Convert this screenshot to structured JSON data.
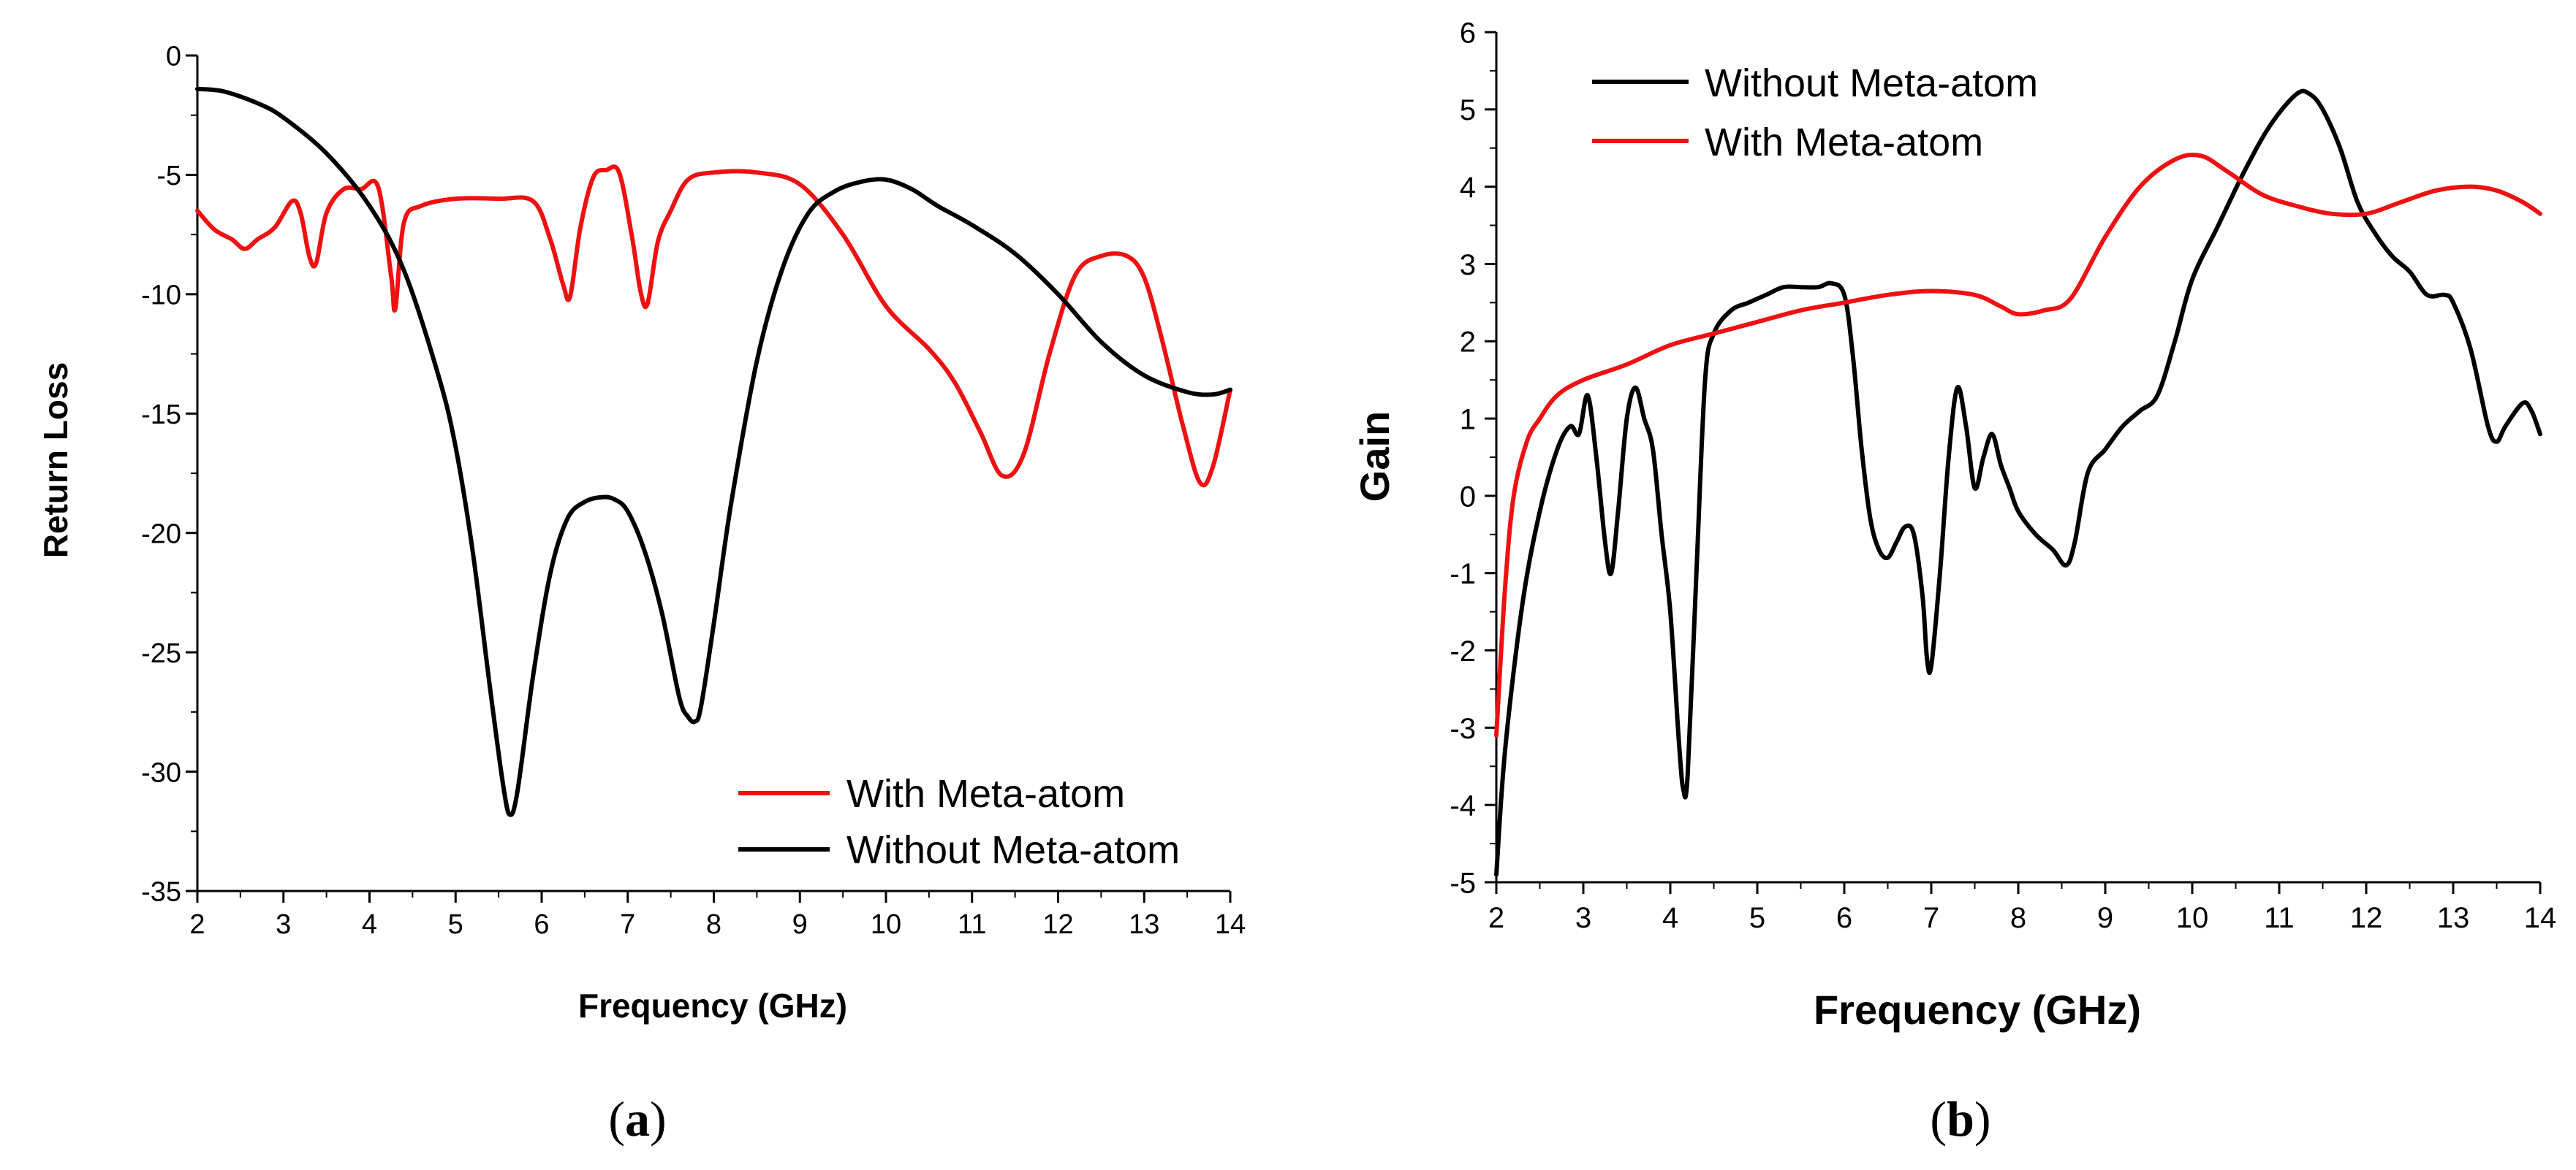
{
  "colors": {
    "red": "#ee1111",
    "black": "#000000"
  },
  "chart_data": [
    {
      "type": "line",
      "panel_label": "a",
      "title": "",
      "xlabel": "Frequency (GHz)",
      "ylabel": "Return Loss",
      "xlim": [
        2,
        14
      ],
      "ylim": [
        -35,
        0
      ],
      "xticks": [
        "2",
        "3",
        "4",
        "5",
        "6",
        "7",
        "8",
        "9",
        "10",
        "11",
        "12",
        "13",
        "14"
      ],
      "yticks": [
        "0",
        "-5",
        "-10",
        "-15",
        "-20",
        "-25",
        "-30",
        "-35"
      ],
      "legend": [
        "With Meta-atom",
        "Without Meta-atom"
      ],
      "legend_position": "bottom-right",
      "series": [
        {
          "name": "With Meta-atom",
          "color": "#ee1111",
          "x": [
            2.0,
            2.2,
            2.4,
            2.55,
            2.7,
            2.9,
            3.1,
            3.2,
            3.3,
            3.38,
            3.5,
            3.7,
            3.9,
            4.1,
            4.25,
            4.3,
            4.4,
            4.6,
            5.0,
            5.5,
            5.9,
            6.1,
            6.25,
            6.33,
            6.45,
            6.6,
            6.75,
            6.9,
            7.05,
            7.15,
            7.23,
            7.35,
            7.5,
            7.7,
            8.0,
            8.5,
            9.0,
            9.5,
            10.0,
            10.5,
            10.8,
            11.1,
            11.35,
            11.6,
            11.9,
            12.2,
            12.5,
            12.8,
            13.0,
            13.2,
            13.45,
            13.65,
            13.8,
            14.0
          ],
          "y": [
            -6.5,
            -7.3,
            -7.7,
            -8.1,
            -7.7,
            -7.2,
            -6.1,
            -6.6,
            -8.4,
            -8.7,
            -6.6,
            -5.6,
            -5.6,
            -5.5,
            -9.2,
            -10.6,
            -7.0,
            -6.3,
            -6.0,
            -6.0,
            -6.1,
            -7.7,
            -9.6,
            -10.1,
            -7.2,
            -5.1,
            -4.8,
            -4.9,
            -7.6,
            -9.9,
            -10.4,
            -7.8,
            -6.5,
            -5.2,
            -4.9,
            -4.9,
            -5.4,
            -7.5,
            -10.5,
            -12.3,
            -13.7,
            -15.8,
            -17.6,
            -16.7,
            -12.5,
            -9.2,
            -8.4,
            -8.4,
            -9.3,
            -11.8,
            -15.5,
            -17.9,
            -17.2,
            -14.0
          ]
        },
        {
          "name": "Without Meta-atom",
          "color": "#000000",
          "x": [
            2.0,
            2.3,
            2.7,
            3.0,
            3.5,
            4.0,
            4.4,
            4.8,
            5.0,
            5.2,
            5.4,
            5.55,
            5.63,
            5.72,
            5.9,
            6.1,
            6.3,
            6.5,
            6.7,
            6.85,
            7.0,
            7.2,
            7.4,
            7.6,
            7.7,
            7.78,
            7.85,
            8.0,
            8.2,
            8.5,
            8.8,
            9.1,
            9.4,
            9.7,
            10.0,
            10.3,
            10.6,
            11.0,
            11.5,
            12.0,
            12.5,
            13.0,
            13.5,
            13.8,
            14.0
          ],
          "y": [
            -1.4,
            -1.5,
            -2.0,
            -2.6,
            -4.1,
            -6.3,
            -9.0,
            -13.4,
            -16.4,
            -20.8,
            -26.5,
            -30.5,
            -31.8,
            -30.8,
            -26.0,
            -21.7,
            -19.4,
            -18.7,
            -18.5,
            -18.6,
            -19.1,
            -20.8,
            -23.4,
            -26.9,
            -27.7,
            -27.9,
            -27.3,
            -23.8,
            -18.8,
            -12.8,
            -8.9,
            -6.6,
            -5.7,
            -5.3,
            -5.2,
            -5.6,
            -6.3,
            -7.1,
            -8.3,
            -10.0,
            -12.0,
            -13.4,
            -14.1,
            -14.2,
            -14.0
          ]
        }
      ]
    },
    {
      "type": "line",
      "panel_label": "b",
      "title": "",
      "xlabel": "Frequency (GHz)",
      "ylabel": "Gain",
      "xlim": [
        2,
        14
      ],
      "ylim": [
        -5,
        6
      ],
      "xticks": [
        "2",
        "3",
        "4",
        "5",
        "6",
        "7",
        "8",
        "9",
        "10",
        "11",
        "12",
        "13",
        "14"
      ],
      "yticks": [
        "6",
        "5",
        "4",
        "3",
        "2",
        "1",
        "0",
        "-1",
        "-2",
        "-3",
        "-4",
        "-5"
      ],
      "legend": [
        "Without Meta-atom",
        "With Meta-atom"
      ],
      "legend_position": "top-left",
      "series": [
        {
          "name": "Without Meta-atom",
          "color": "#000000",
          "x": [
            2.0,
            2.1,
            2.3,
            2.5,
            2.7,
            2.85,
            2.95,
            3.05,
            3.15,
            3.25,
            3.32,
            3.4,
            3.5,
            3.6,
            3.7,
            3.8,
            3.9,
            4.0,
            4.1,
            4.15,
            4.2,
            4.3,
            4.4,
            4.5,
            4.7,
            4.9,
            5.1,
            5.3,
            5.5,
            5.7,
            5.85,
            6.0,
            6.1,
            6.2,
            6.3,
            6.4,
            6.5,
            6.6,
            6.7,
            6.8,
            6.9,
            6.95,
            7.0,
            7.1,
            7.2,
            7.3,
            7.4,
            7.5,
            7.6,
            7.7,
            7.8,
            7.9,
            8.0,
            8.2,
            8.4,
            8.55,
            8.65,
            8.8,
            9.0,
            9.2,
            9.4,
            9.6,
            9.8,
            10.0,
            10.3,
            10.6,
            10.9,
            11.2,
            11.35,
            11.5,
            11.7,
            11.9,
            12.1,
            12.3,
            12.5,
            12.7,
            12.9,
            13.0,
            13.2,
            13.4,
            13.5,
            13.6,
            13.8,
            13.9,
            14.0
          ],
          "y": [
            -4.9,
            -3.3,
            -1.4,
            -0.2,
            0.6,
            0.9,
            0.8,
            1.3,
            0.5,
            -0.6,
            -1.0,
            -0.2,
            1.0,
            1.4,
            1.0,
            0.6,
            -0.5,
            -1.5,
            -3.2,
            -3.8,
            -3.6,
            -1.0,
            1.5,
            2.1,
            2.4,
            2.5,
            2.6,
            2.7,
            2.7,
            2.7,
            2.75,
            2.6,
            1.8,
            0.6,
            -0.3,
            -0.7,
            -0.8,
            -0.6,
            -0.4,
            -0.5,
            -1.3,
            -2.1,
            -2.2,
            -1.0,
            0.5,
            1.4,
            0.9,
            0.1,
            0.5,
            0.8,
            0.4,
            0.1,
            -0.2,
            -0.5,
            -0.7,
            -0.9,
            -0.6,
            0.3,
            0.6,
            0.9,
            1.1,
            1.3,
            2.0,
            2.8,
            3.5,
            4.2,
            4.8,
            5.2,
            5.2,
            5.0,
            4.5,
            3.8,
            3.4,
            3.1,
            2.9,
            2.6,
            2.6,
            2.5,
            1.9,
            0.9,
            0.7,
            0.9,
            1.2,
            1.1,
            0.8
          ]
        },
        {
          "name": "With Meta-atom",
          "color": "#ee1111",
          "x": [
            2.0,
            2.1,
            2.2,
            2.35,
            2.5,
            2.7,
            3.0,
            3.5,
            4.0,
            4.5,
            5.0,
            5.5,
            6.0,
            6.5,
            7.0,
            7.5,
            7.8,
            8.0,
            8.3,
            8.6,
            9.0,
            9.4,
            9.8,
            10.1,
            10.4,
            10.8,
            11.2,
            11.6,
            12.0,
            12.4,
            12.8,
            13.2,
            13.5,
            13.8,
            14.0
          ],
          "y": [
            -3.1,
            -1.2,
            0.0,
            0.7,
            1.0,
            1.3,
            1.5,
            1.7,
            1.95,
            2.1,
            2.25,
            2.4,
            2.5,
            2.6,
            2.65,
            2.6,
            2.45,
            2.35,
            2.4,
            2.55,
            3.35,
            4.0,
            4.35,
            4.4,
            4.2,
            3.9,
            3.75,
            3.65,
            3.65,
            3.8,
            3.95,
            4.0,
            3.95,
            3.8,
            3.65
          ]
        }
      ]
    }
  ]
}
